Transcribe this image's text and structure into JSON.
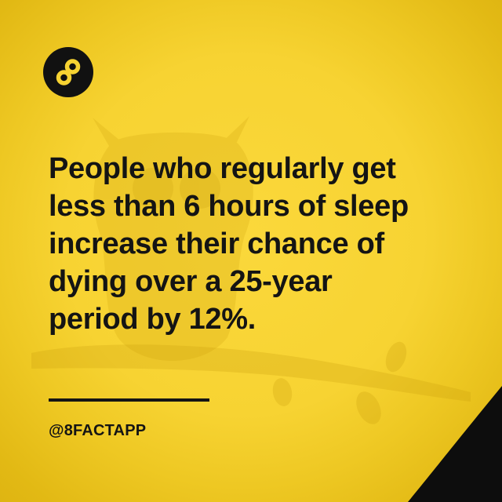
{
  "fact": {
    "lines": [
      "People who regularly get",
      "less than 6 hours of sleep",
      "increase their chance of",
      "dying over a 25-year",
      "period by 12%."
    ]
  },
  "footer": {
    "handle": "@8FACTAPP"
  },
  "logo": {
    "icon": "infinity-8-icon"
  },
  "colors": {
    "background": "#f7d332",
    "text": "#141414",
    "corner": "#0d0d0d"
  }
}
